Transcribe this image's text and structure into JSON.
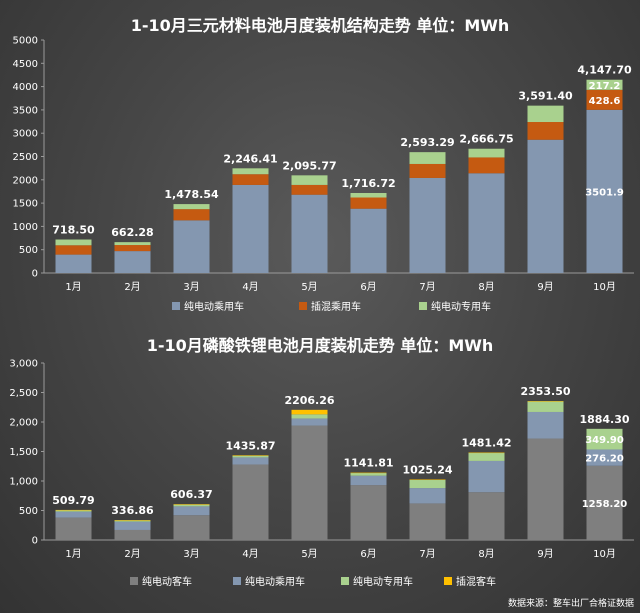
{
  "colors": {
    "pure_ev_passenger": "#8497b0",
    "plugin_hybrid_passenger": "#c55a11",
    "pure_ev_special": "#a9d18e",
    "pure_ev_bus": "#7f7f7f",
    "plugin_hybrid_bus": "#ffc000"
  },
  "source_text": "数据来源：整车出厂合格证数据",
  "chart_data": [
    {
      "type": "bar",
      "stacked": true,
      "title": "1-10月三元材料电池月度装机结构走势    单位：MWh",
      "categories": [
        "1月",
        "2月",
        "3月",
        "4月",
        "5月",
        "6月",
        "7月",
        "8月",
        "9月",
        "10月"
      ],
      "ylim": [
        0,
        5000
      ],
      "yticks": [
        "0",
        "500",
        "1000",
        "1500",
        "2000",
        "2500",
        "3000",
        "3500",
        "4000",
        "4500",
        "5000"
      ],
      "grid": false,
      "legend": "bottom",
      "series": [
        {
          "name": "纯电动乘用车",
          "color_key": "pure_ev_passenger",
          "values": [
            395,
            470,
            1130,
            1890,
            1680,
            1380,
            2040,
            2140,
            2860,
            3501.9
          ]
        },
        {
          "name": "插混乘用车",
          "color_key": "plugin_hybrid_passenger",
          "values": [
            200,
            130,
            240,
            230,
            210,
            240,
            300,
            340,
            380,
            428.6
          ]
        },
        {
          "name": "纯电动专用车",
          "color_key": "pure_ev_special",
          "values": [
            123.5,
            62.28,
            108.54,
            126.41,
            205.77,
            96.72,
            253.29,
            186.75,
            351.4,
            217.2
          ]
        }
      ],
      "totals": [
        "718.50",
        "662.28",
        "1,478.54",
        "2,246.41",
        "2,095.77",
        "1,716.72",
        "2,593.29",
        "2,666.75",
        "3,591.40",
        "4,147.70"
      ],
      "inner_labels": [
        {
          "category": "10月",
          "series": "纯电动乘用车",
          "text": "3501.9"
        },
        {
          "category": "10月",
          "series": "插混乘用车",
          "text": "428.6"
        },
        {
          "category": "10月",
          "series": "纯电动专用车",
          "text": "217.2"
        }
      ]
    },
    {
      "type": "bar",
      "stacked": true,
      "title": "1-10月磷酸铁锂电池月度装机走势  单位：MWh",
      "categories": [
        "1月",
        "2月",
        "3月",
        "4月",
        "5月",
        "6月",
        "7月",
        "8月",
        "9月",
        "10月"
      ],
      "ylim": [
        0,
        3000
      ],
      "yticks": [
        "0",
        "500",
        "1,000",
        "1,500",
        "2,000",
        "2,500",
        "3,000"
      ],
      "grid": false,
      "legend": "bottom",
      "series": [
        {
          "name": "纯电动客车",
          "color_key": "pure_ev_bus",
          "values": [
            380,
            170,
            420,
            1280,
            1940,
            930,
            620,
            810,
            1720,
            1258.2
          ]
        },
        {
          "name": "纯电动乘用车",
          "color_key": "pure_ev_passenger",
          "values": [
            100,
            140,
            150,
            120,
            120,
            160,
            260,
            530,
            450,
            276.2
          ]
        },
        {
          "name": "纯电动专用车",
          "color_key": "pure_ev_special",
          "values": [
            25,
            22,
            32,
            30,
            70,
            45,
            140,
            140,
            180,
            349.9
          ]
        },
        {
          "name": "插混客车",
          "color_key": "plugin_hybrid_bus",
          "values": [
            4.79,
            4.86,
            4.37,
            5.87,
            76.26,
            6.81,
            5.24,
            1.42,
            3.5,
            0
          ]
        }
      ],
      "totals": [
        "509.79",
        "336.86",
        "606.37",
        "1435.87",
        "2206.26",
        "1141.81",
        "1025.24",
        "1481.42",
        "2353.50",
        "1884.30"
      ],
      "inner_labels": [
        {
          "category": "10月",
          "series": "纯电动客车",
          "text": "1258.20"
        },
        {
          "category": "10月",
          "series": "纯电动乘用车",
          "text": "276.20"
        },
        {
          "category": "10月",
          "series": "纯电动专用车",
          "text": "349.90"
        }
      ]
    }
  ]
}
